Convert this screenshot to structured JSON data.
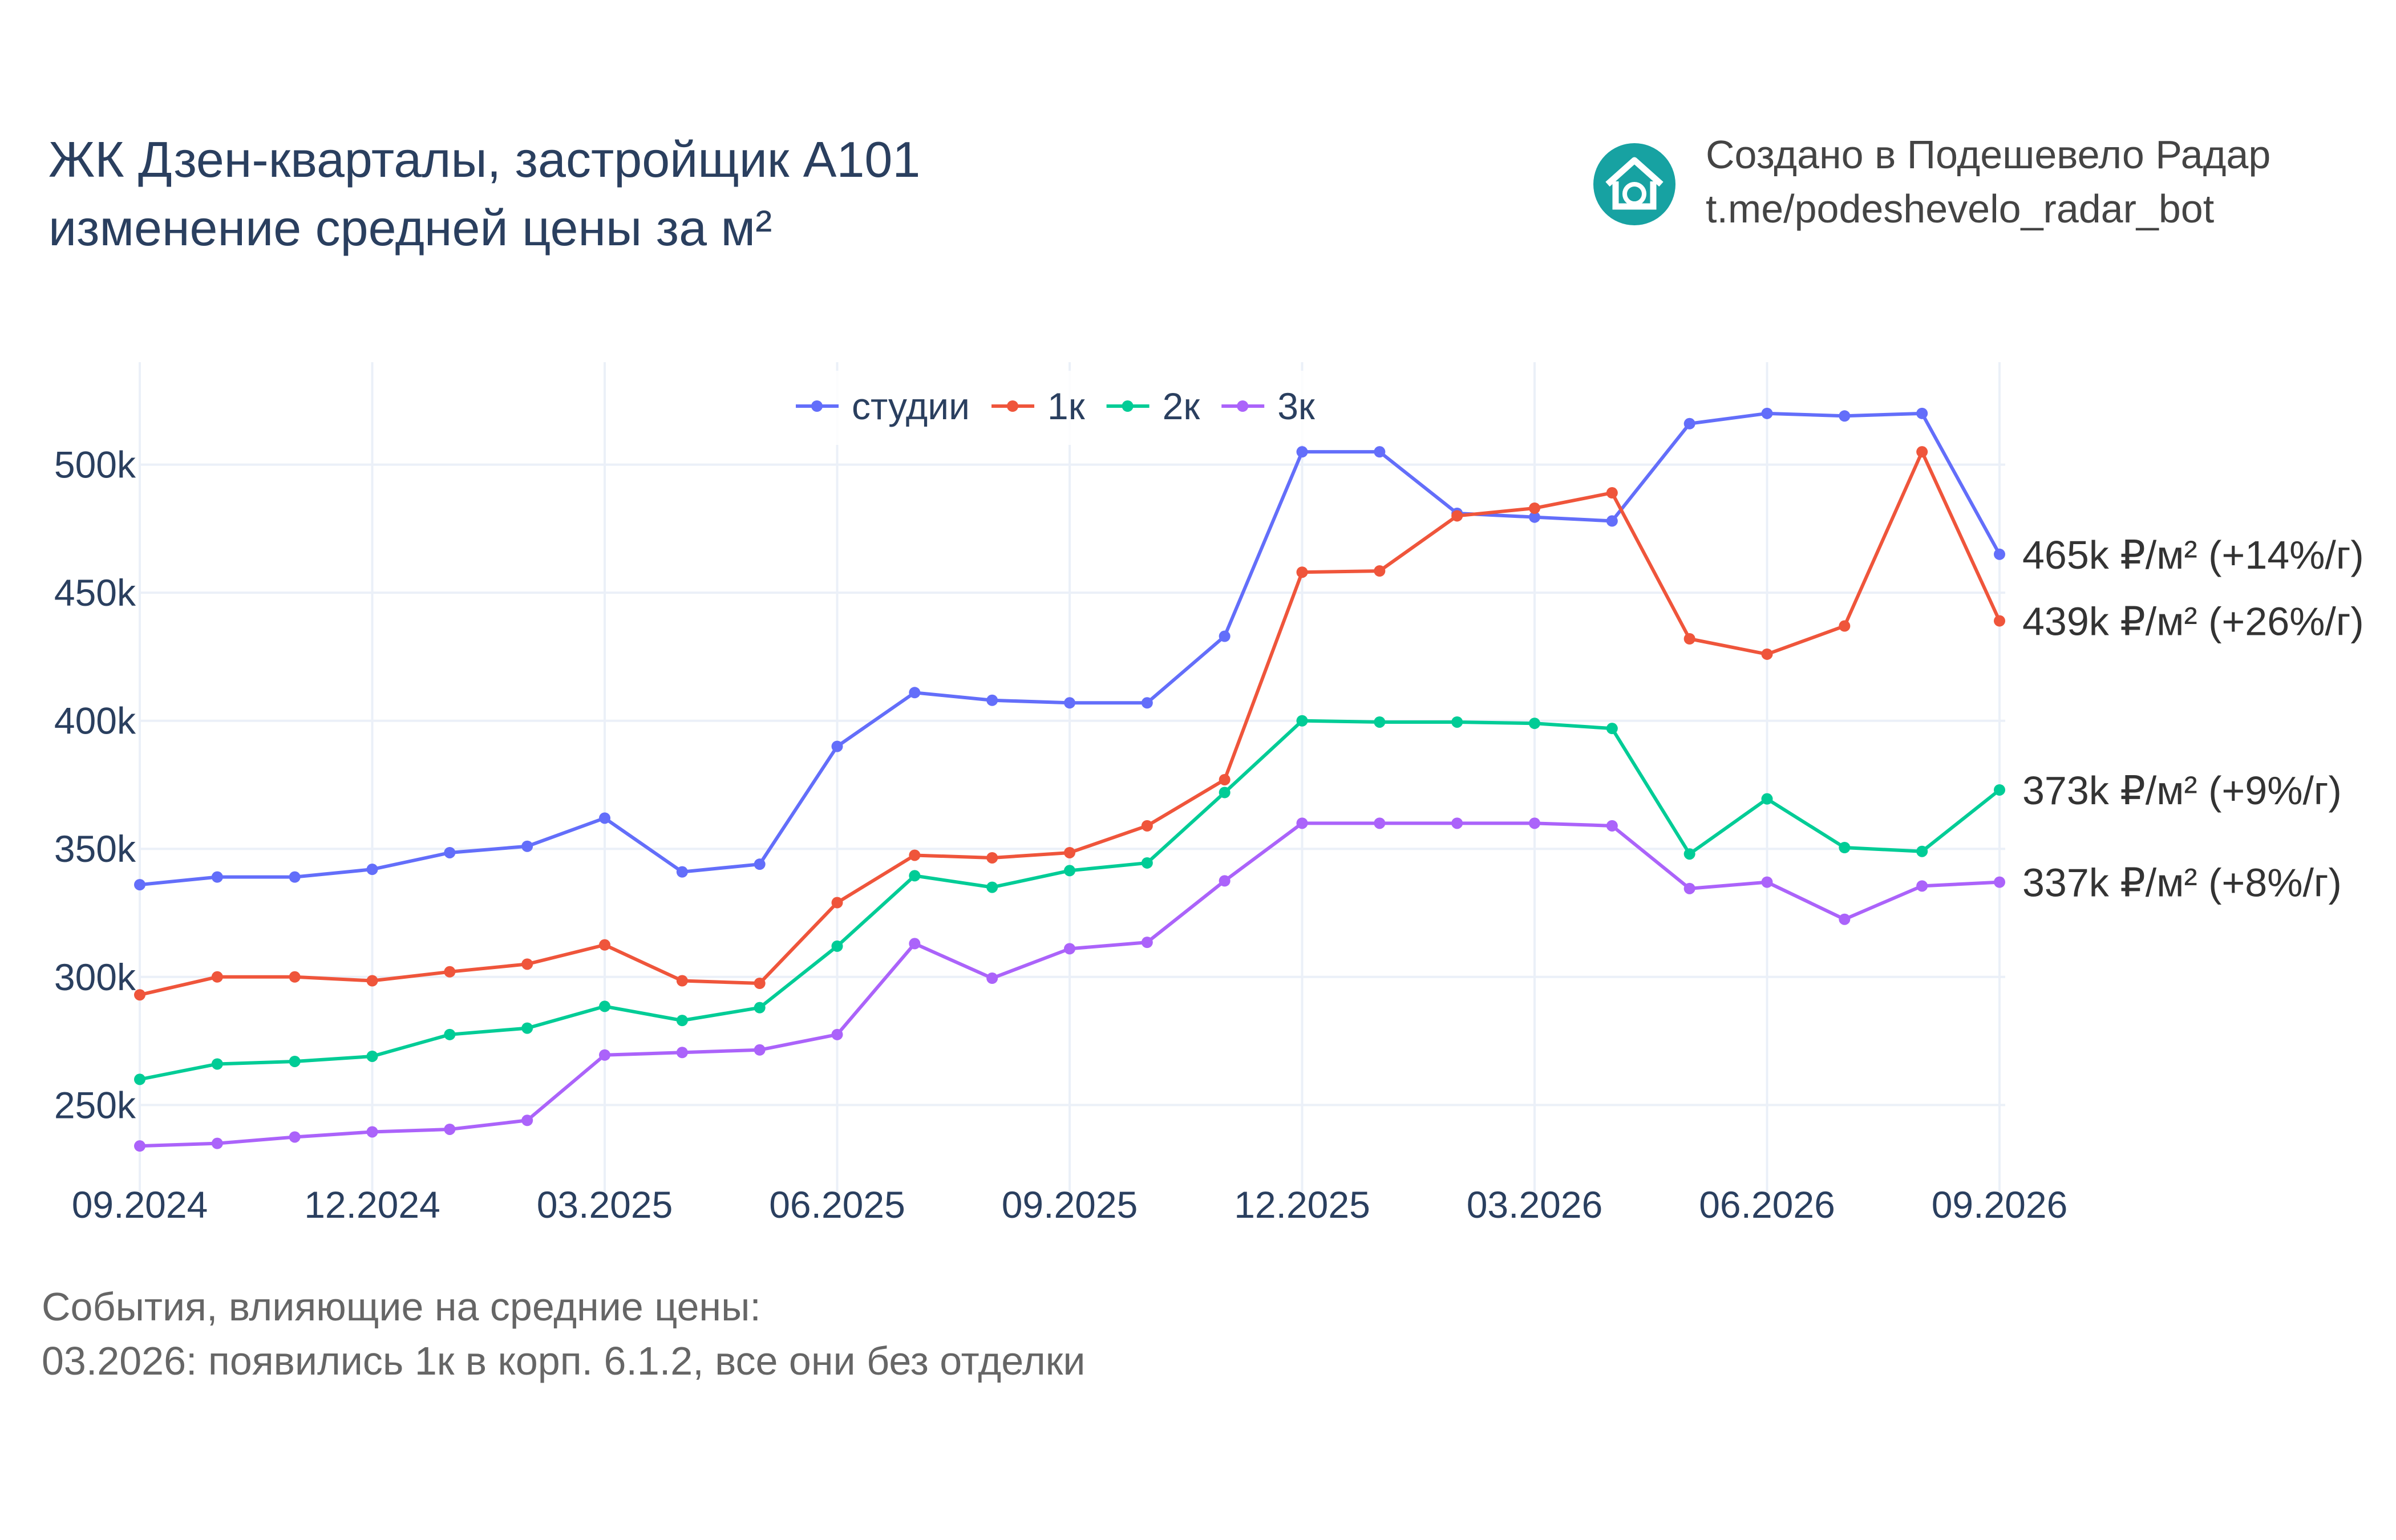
{
  "header": {
    "title_line1": "ЖК Дзен-кварталы, застройщик A101",
    "title_line2": "изменение средней цены за м²",
    "credit_line1": "Создано в Подешевело Радар",
    "credit_line2": "t.me/podeshevelo_radar_bot",
    "logo_icon": "house-refresh-icon",
    "logo_color": "#17a2a2"
  },
  "footer": {
    "line1": "События, влияющие на средние цены:",
    "line2": "03.2026: появились 1к в корп. 6.1.2, все они без отделки"
  },
  "chart_data": {
    "type": "line",
    "x": [
      "09.2024",
      "10.2024",
      "11.2024",
      "12.2024",
      "01.2025",
      "02.2025",
      "03.2025",
      "04.2025",
      "05.2025",
      "06.2025",
      "07.2025",
      "08.2025",
      "09.2025",
      "10.2025",
      "11.2025",
      "12.2025",
      "01.2026",
      "02.2026",
      "03.2026",
      "04.2026",
      "05.2026",
      "06.2026",
      "07.2026",
      "08.2026",
      "09.2026"
    ],
    "x_tick_labels": [
      "09.2024",
      "12.2024",
      "03.2025",
      "06.2025",
      "09.2025",
      "12.2025",
      "03.2026",
      "06.2026",
      "09.2026"
    ],
    "y_tick_values": [
      250000,
      300000,
      350000,
      400000,
      450000,
      500000
    ],
    "y_tick_labels": [
      "250k",
      "300k",
      "350k",
      "400k",
      "450k",
      "500k"
    ],
    "ylim": [
      216000,
      540000
    ],
    "grid": true,
    "legend_position": "top-center",
    "series": [
      {
        "name": "студии",
        "color": "#636efa",
        "values": [
          336000,
          339000,
          339000,
          342000,
          348500,
          351000,
          362000,
          341000,
          344000,
          390000,
          411000,
          408000,
          407000,
          407000,
          433000,
          505000,
          505000,
          481000,
          479500,
          478000,
          516000,
          520000,
          519000,
          520000,
          465000
        ],
        "end_label": "465k ₽/м² (+14%/г)"
      },
      {
        "name": "1к",
        "color": "#ef553b",
        "values": [
          293000,
          300000,
          300000,
          298500,
          302000,
          305000,
          312500,
          298500,
          297500,
          329000,
          347500,
          346500,
          348500,
          359000,
          377000,
          458000,
          458500,
          480000,
          483000,
          489000,
          432000,
          426000,
          437000,
          505000,
          439000
        ],
        "end_label": "439k ₽/м² (+26%/г)"
      },
      {
        "name": "2к",
        "color": "#00cc96",
        "values": [
          260000,
          266000,
          267000,
          269000,
          277500,
          280000,
          288500,
          283000,
          288000,
          312000,
          339500,
          335000,
          341500,
          344500,
          372000,
          400000,
          399500,
          399500,
          399000,
          397000,
          348000,
          369500,
          350500,
          349000,
          373000
        ],
        "end_label": "373k ₽/м² (+9%/г)"
      },
      {
        "name": "3к",
        "color": "#ab63fa",
        "values": [
          234000,
          235000,
          237500,
          239500,
          240500,
          244000,
          269500,
          270500,
          271500,
          277500,
          313000,
          299500,
          311000,
          313500,
          337500,
          360000,
          360000,
          360000,
          360000,
          359000,
          334500,
          337000,
          322500,
          335500,
          337000
        ],
        "end_label": "337k ₽/м² (+8%/г)"
      }
    ]
  }
}
